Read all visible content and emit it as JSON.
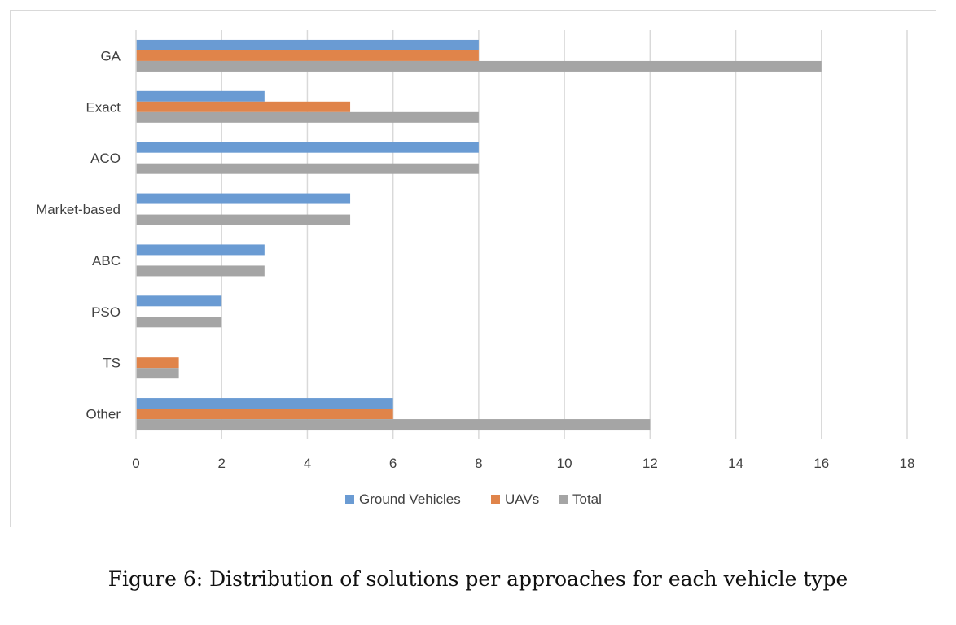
{
  "caption": "Figure 6: Distribution of solutions per approaches for each vehicle type",
  "chart_data": {
    "type": "bar",
    "orientation": "horizontal",
    "title": "",
    "xlabel": "",
    "ylabel": "",
    "xlim": [
      0,
      18
    ],
    "x_ticks": [
      0,
      2,
      4,
      6,
      8,
      10,
      12,
      14,
      16,
      18
    ],
    "grid": "vertical",
    "legend_position": "bottom",
    "categories": [
      "GA",
      "Exact",
      "ACO",
      "Market-based",
      "ABC",
      "PSO",
      "TS",
      "Other"
    ],
    "series": [
      {
        "name": "Ground Vehicles",
        "color": "#6a9bd3",
        "values": [
          8,
          3,
          8,
          5,
          3,
          2,
          0,
          6
        ]
      },
      {
        "name": "UAVs",
        "color": "#e0844a",
        "values": [
          8,
          5,
          0,
          0,
          0,
          0,
          1,
          6
        ]
      },
      {
        "name": "Total",
        "color": "#a5a5a5",
        "values": [
          16,
          8,
          8,
          5,
          3,
          2,
          1,
          12
        ]
      }
    ]
  }
}
